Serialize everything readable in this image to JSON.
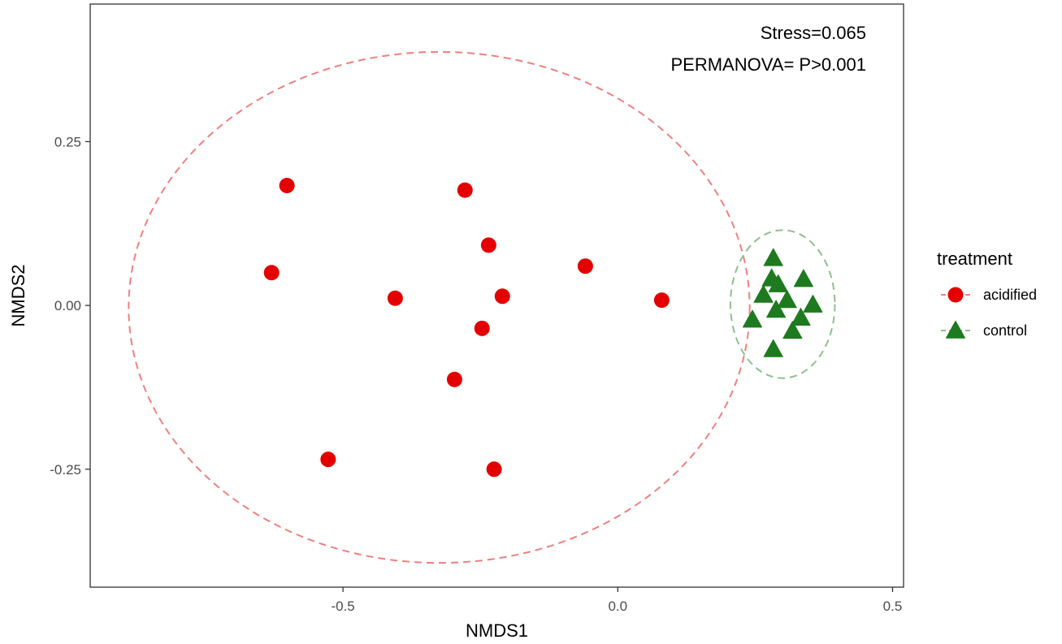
{
  "chart_data": {
    "type": "scatter",
    "xlabel": "NMDS1",
    "ylabel": "NMDS2",
    "xlim": [
      -0.96,
      0.52
    ],
    "ylim": [
      -0.43,
      0.46
    ],
    "x_ticks": [
      -0.5,
      0.0,
      0.5
    ],
    "x_tick_labels": [
      "-0.5",
      "0.0",
      "0.5"
    ],
    "y_ticks": [
      -0.25,
      0.0,
      0.25
    ],
    "y_tick_labels": [
      "-0.25",
      "0.00",
      "0.25"
    ],
    "grid": false,
    "annotations": [
      "Stress=0.065",
      "PERMANOVA= P>0.001"
    ],
    "legend": {
      "title": "treatment",
      "placement": "right"
    },
    "series": [
      {
        "name": "acidified",
        "marker": "circle",
        "color": "#e50000",
        "ellipse_color": "#f08080",
        "ellipse": {
          "cx": -0.325,
          "cy": -0.003,
          "rx": 0.565,
          "ry": 0.39
        },
        "points": [
          {
            "x": -0.602,
            "y": 0.183
          },
          {
            "x": -0.278,
            "y": 0.176
          },
          {
            "x": -0.235,
            "y": 0.092
          },
          {
            "x": -0.059,
            "y": 0.06
          },
          {
            "x": -0.63,
            "y": 0.05
          },
          {
            "x": -0.405,
            "y": 0.011
          },
          {
            "x": -0.21,
            "y": 0.014
          },
          {
            "x": 0.08,
            "y": 0.008
          },
          {
            "x": -0.247,
            "y": -0.035
          },
          {
            "x": -0.297,
            "y": -0.113
          },
          {
            "x": -0.527,
            "y": -0.235
          },
          {
            "x": -0.225,
            "y": -0.25
          }
        ]
      },
      {
        "name": "control",
        "marker": "triangle",
        "color": "#1e7a1e",
        "ellipse_color": "#8fbf8f",
        "ellipse": {
          "cx": 0.3,
          "cy": 0.002,
          "rx": 0.095,
          "ry": 0.113
        },
        "points": [
          {
            "x": 0.283,
            "y": 0.071
          },
          {
            "x": 0.28,
            "y": 0.04
          },
          {
            "x": 0.338,
            "y": 0.039
          },
          {
            "x": 0.292,
            "y": 0.031
          },
          {
            "x": 0.265,
            "y": 0.015
          },
          {
            "x": 0.308,
            "y": 0.007
          },
          {
            "x": 0.355,
            "y": 0.0
          },
          {
            "x": 0.288,
            "y": -0.008
          },
          {
            "x": 0.245,
            "y": -0.023
          },
          {
            "x": 0.333,
            "y": -0.02
          },
          {
            "x": 0.318,
            "y": -0.04
          },
          {
            "x": 0.283,
            "y": -0.068
          }
        ]
      }
    ]
  }
}
